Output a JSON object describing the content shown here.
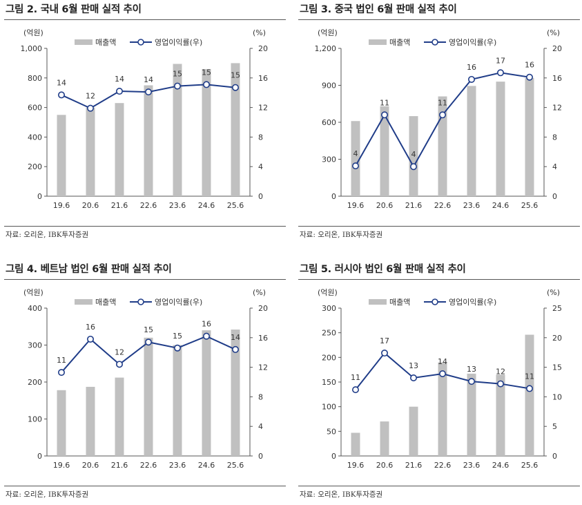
{
  "colors": {
    "bar": "#c0c0c0",
    "line": "#1f3c88",
    "marker_fill": "#ffffff"
  },
  "legend": {
    "bar_label": "매출액",
    "line_label": "영업이익률(우)"
  },
  "units": {
    "left": "(억원)",
    "right": "(%)"
  },
  "source": "자료: 오리온, IBK투자증권",
  "chart_data": [
    {
      "type": "bar",
      "title": "그림 2. 국내 6월 판매 실적 추이",
      "categories": [
        "19.6",
        "20.6",
        "21.6",
        "22.6",
        "23.6",
        "24.6",
        "25.6"
      ],
      "series": [
        {
          "name": "매출액",
          "type": "bar",
          "axis": "left",
          "values": [
            550,
            600,
            630,
            750,
            895,
            860,
            900
          ]
        },
        {
          "name": "영업이익률(우)",
          "type": "line",
          "axis": "right",
          "values": [
            13.7,
            11.9,
            14.2,
            14.1,
            14.9,
            15.1,
            14.7
          ],
          "labels": [
            "14",
            "12",
            "14",
            "14",
            "15",
            "15",
            "15"
          ]
        }
      ],
      "ylim_left": [
        0,
        1000
      ],
      "yticks_left": [
        0,
        200,
        400,
        600,
        800,
        1000
      ],
      "ytick_labels_left": [
        "0",
        "200",
        "400",
        "600",
        "800",
        "1,000"
      ],
      "ylim_right": [
        0,
        20
      ],
      "yticks_right": [
        0,
        4,
        8,
        12,
        16,
        20
      ],
      "ytick_labels_right": [
        "0",
        "4",
        "8",
        "12",
        "16",
        "20"
      ],
      "legend_position": "top",
      "grid": false
    },
    {
      "type": "bar",
      "title": "그림 3. 중국 법인 6월 판매 실적 추이",
      "categories": [
        "19.6",
        "20.6",
        "21.6",
        "22.6",
        "23.6",
        "24.6",
        "25.6"
      ],
      "series": [
        {
          "name": "매출액",
          "type": "bar",
          "axis": "left",
          "values": [
            610,
            730,
            650,
            810,
            895,
            930,
            960
          ]
        },
        {
          "name": "영업이익률(우)",
          "type": "line",
          "axis": "right",
          "values": [
            4.1,
            11.0,
            4.0,
            11.0,
            15.8,
            16.7,
            16.1
          ],
          "labels": [
            "4",
            "11",
            "4",
            "11",
            "16",
            "17",
            "16"
          ]
        }
      ],
      "ylim_left": [
        0,
        1200
      ],
      "yticks_left": [
        0,
        300,
        600,
        900,
        1200
      ],
      "ytick_labels_left": [
        "0",
        "300",
        "600",
        "900",
        "1,200"
      ],
      "ylim_right": [
        0,
        20
      ],
      "yticks_right": [
        0,
        4,
        8,
        12,
        16,
        20
      ],
      "ytick_labels_right": [
        "0",
        "4",
        "8",
        "12",
        "16",
        "20"
      ],
      "legend_position": "top",
      "grid": false
    },
    {
      "type": "bar",
      "title": "그림 4. 베트남 법인 6월 판매 실적 추이",
      "categories": [
        "19.6",
        "20.6",
        "21.6",
        "22.6",
        "23.6",
        "24.6",
        "25.6"
      ],
      "series": [
        {
          "name": "매출액",
          "type": "bar",
          "axis": "left",
          "values": [
            178,
            187,
            212,
            320,
            300,
            340,
            342
          ]
        },
        {
          "name": "영업이익률(우)",
          "type": "line",
          "axis": "right",
          "values": [
            11.3,
            15.8,
            12.4,
            15.4,
            14.6,
            16.2,
            14.4
          ],
          "labels": [
            "11",
            "16",
            "12",
            "15",
            "15",
            "16",
            "14"
          ]
        }
      ],
      "ylim_left": [
        0,
        400
      ],
      "yticks_left": [
        0,
        100,
        200,
        300,
        400
      ],
      "ytick_labels_left": [
        "0",
        "100",
        "200",
        "300",
        "400"
      ],
      "ylim_right": [
        0,
        20
      ],
      "yticks_right": [
        0,
        4,
        8,
        12,
        16,
        20
      ],
      "ytick_labels_right": [
        "0",
        "4",
        "8",
        "12",
        "16",
        "20"
      ],
      "legend_position": "top",
      "grid": false
    },
    {
      "type": "bar",
      "title": "그림 5. 러시아 법인 6월 판매 실적 추이",
      "categories": [
        "19.6",
        "20.6",
        "21.6",
        "22.6",
        "23.6",
        "24.6",
        "25.6"
      ],
      "series": [
        {
          "name": "매출액",
          "type": "bar",
          "axis": "left",
          "values": [
            47,
            70,
            100,
            190,
            167,
            165,
            246
          ]
        },
        {
          "name": "영업이익률(우)",
          "type": "line",
          "axis": "right",
          "values": [
            11.2,
            17.4,
            13.2,
            13.9,
            12.6,
            12.2,
            11.4
          ],
          "labels": [
            "11",
            "17",
            "13",
            "14",
            "13",
            "12",
            "11"
          ]
        }
      ],
      "ylim_left": [
        0,
        300
      ],
      "yticks_left": [
        0,
        50,
        100,
        150,
        200,
        250,
        300
      ],
      "ytick_labels_left": [
        "0",
        "50",
        "100",
        "150",
        "200",
        "250",
        "300"
      ],
      "ylim_right": [
        0,
        25
      ],
      "yticks_right": [
        0,
        5,
        10,
        15,
        20,
        25
      ],
      "ytick_labels_right": [
        "0",
        "5",
        "10",
        "15",
        "20",
        "25"
      ],
      "legend_position": "top",
      "grid": false
    }
  ]
}
